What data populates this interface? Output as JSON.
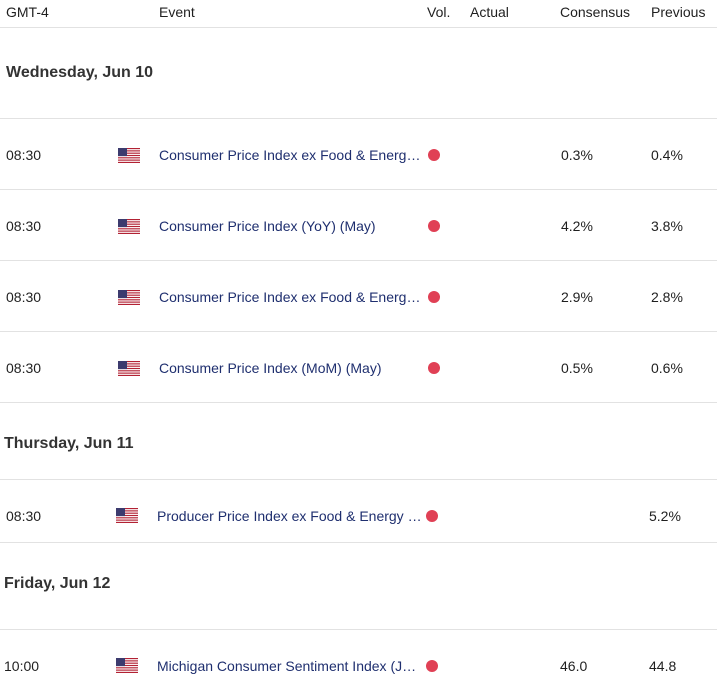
{
  "header": {
    "tz": "GMT-4",
    "event": "Event",
    "vol": "Vol.",
    "actual": "Actual",
    "consensus": "Consensus",
    "previous": "Previous"
  },
  "days": [
    {
      "label": "Wednesday, Jun 10",
      "events": [
        {
          "time": "08:30",
          "country": "us-flag-icon",
          "event": "Consumer Price Index ex Food & Energy (YoY) (May)",
          "vol": "high",
          "actual": "",
          "consensus": "0.3%",
          "previous": "0.4%"
        },
        {
          "time": "08:30",
          "country": "us-flag-icon",
          "event": "Consumer Price Index (YoY) (May)",
          "vol": "high",
          "actual": "",
          "consensus": "4.2%",
          "previous": "3.8%"
        },
        {
          "time": "08:30",
          "country": "us-flag-icon",
          "event": "Consumer Price Index ex Food & Energy (YoY) (May)",
          "vol": "high",
          "actual": "",
          "consensus": "2.9%",
          "previous": "2.8%"
        },
        {
          "time": "08:30",
          "country": "us-flag-icon",
          "event": "Consumer Price Index (MoM) (May)",
          "vol": "high",
          "actual": "",
          "consensus": "0.5%",
          "previous": "0.6%"
        }
      ]
    },
    {
      "label": "Thursday, Jun 11",
      "events": [
        {
          "time": "08:30",
          "country": "us-flag-icon",
          "event": "Producer Price Index ex Food & Energy (YoY) (May)",
          "vol": "high",
          "actual": "",
          "consensus": "",
          "previous": "5.2%"
        }
      ]
    },
    {
      "label": "Friday, Jun 12",
      "events": [
        {
          "time": "10:00",
          "country": "us-flag-icon",
          "event": "Michigan Consumer Sentiment Index (Jun)",
          "vol": "high",
          "actual": "",
          "consensus": "46.0",
          "previous": "44.8"
        }
      ]
    }
  ],
  "colors": {
    "event_text": "#1f2f6f",
    "high_volatility": "#e04055",
    "divider": "#e2e2e2"
  }
}
